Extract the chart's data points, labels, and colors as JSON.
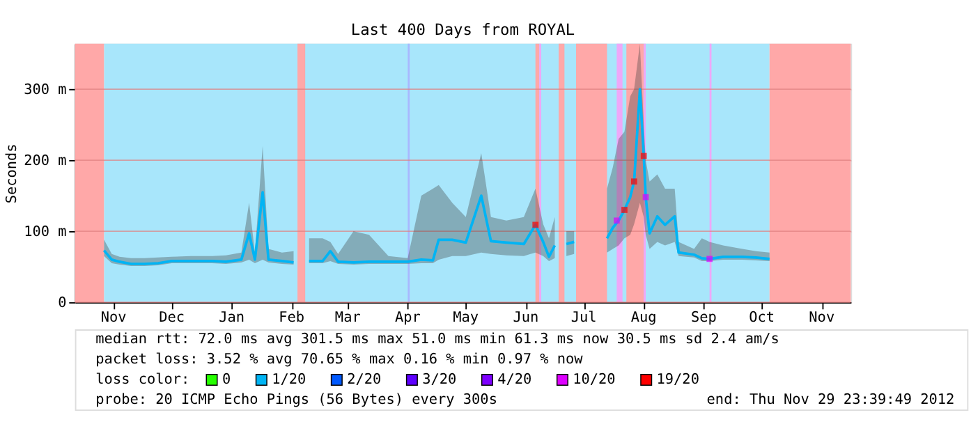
{
  "chart_data": {
    "type": "line",
    "title": "Last 400 Days from ROYAL",
    "ylabel": "Seconds",
    "xlim": [
      "2011-10-26T00:00",
      "2012-11-29T23:39"
    ],
    "xticks": [
      {
        "value": "2011-11-15",
        "label": "Nov"
      },
      {
        "value": "2011-12-15",
        "label": "Dec"
      },
      {
        "value": "2012-01-15",
        "label": "Jan"
      },
      {
        "value": "2012-02-15",
        "label": "Feb"
      },
      {
        "value": "2012-03-15",
        "label": "Mar"
      },
      {
        "value": "2012-04-15",
        "label": "Apr"
      },
      {
        "value": "2012-05-15",
        "label": "May"
      },
      {
        "value": "2012-06-15",
        "label": "Jun"
      },
      {
        "value": "2012-07-15",
        "label": "Jul"
      },
      {
        "value": "2012-08-15",
        "label": "Aug"
      },
      {
        "value": "2012-09-15",
        "label": "Sep"
      },
      {
        "value": "2012-10-15",
        "label": "Oct"
      },
      {
        "value": "2012-11-15",
        "label": "Nov"
      }
    ],
    "ylim": [
      0,
      364
    ],
    "yticks": [
      0,
      {
        "value": 100,
        "label": "100 m"
      },
      {
        "value": 200,
        "label": "200 m"
      },
      {
        "value": 300,
        "label": "300 m"
      }
    ],
    "grid": true,
    "legend": "bottom",
    "legend_title": "loss color:",
    "bands": [
      {
        "axis": "x",
        "from": "2011-11-10",
        "to": "2012-10-19",
        "color": "#a8e6fb"
      },
      {
        "axis": "x",
        "from": "2011-10-26T00:00",
        "to": "2011-11-10",
        "color": "#ffa8a8"
      },
      {
        "axis": "x",
        "from": "2012-02-18",
        "to": "2012-02-22",
        "color": "#ffa8a8"
      },
      {
        "axis": "x",
        "from": "2012-04-15",
        "to": "2012-04-16",
        "color": "#a8b8ff"
      },
      {
        "axis": "x",
        "from": "2012-06-20",
        "to": "2012-06-22",
        "color": "#ffa8a8"
      },
      {
        "axis": "x",
        "from": "2012-06-22",
        "to": "2012-06-23",
        "color": "#eea8f8"
      },
      {
        "axis": "x",
        "from": "2012-07-02",
        "to": "2012-07-05",
        "color": "#ffa8a8"
      },
      {
        "axis": "x",
        "from": "2012-07-11",
        "to": "2012-07-27",
        "color": "#ffa8a8"
      },
      {
        "axis": "x",
        "from": "2012-08-01",
        "to": "2012-08-04",
        "color": "#eea8f8"
      },
      {
        "axis": "x",
        "from": "2012-08-06",
        "to": "2012-08-15",
        "color": "#ffa8a8"
      },
      {
        "axis": "x",
        "from": "2012-08-15",
        "to": "2012-08-16",
        "color": "#eea8f8"
      },
      {
        "axis": "x",
        "from": "2012-09-18",
        "to": "2012-09-19",
        "color": "#eea8f8"
      },
      {
        "axis": "x",
        "from": "2012-10-19",
        "to": "2012-11-29T23:39",
        "color": "#ffa8a8"
      }
    ],
    "series": [
      {
        "name": "0",
        "color": "#26ff00"
      },
      {
        "name": "1/20",
        "color": "#00b4f4",
        "line_style": "solid",
        "x": [
          "2011-11-10",
          "2011-11-14",
          "2011-11-18",
          "2011-11-24",
          "2011-12-01",
          "2011-12-08",
          "2011-12-15",
          "2011-12-25",
          "2012-01-05",
          "2012-01-12",
          "2012-01-20",
          "2012-01-24",
          "2012-01-27",
          "2012-01-31",
          "2012-02-03",
          "2012-02-10",
          "2012-02-16",
          "2012-02-20",
          "2012-02-24",
          "2012-03-02",
          "2012-03-06",
          "2012-03-10",
          "2012-03-18",
          "2012-03-26",
          "2012-04-05",
          "2012-04-15",
          "2012-04-22",
          "2012-04-28",
          "2012-05-01",
          "2012-05-08",
          "2012-05-15",
          "2012-05-23",
          "2012-05-28",
          "2012-06-05",
          "2012-06-14",
          "2012-06-20",
          "2012-06-24",
          "2012-06-27",
          "2012-06-30",
          "2012-07-03",
          "2012-07-06",
          "2012-07-10",
          "2012-07-18",
          "2012-07-27",
          "2012-07-30",
          "2012-08-02",
          "2012-08-05",
          "2012-08-08",
          "2012-08-10",
          "2012-08-13",
          "2012-08-15",
          "2012-08-16",
          "2012-08-18",
          "2012-08-22",
          "2012-08-26",
          "2012-08-31",
          "2012-09-02",
          "2012-09-10",
          "2012-09-14",
          "2012-09-18",
          "2012-09-25",
          "2012-10-05",
          "2012-10-12",
          "2012-10-19"
        ],
        "values": [
          73,
          60,
          57,
          54,
          54,
          55,
          58,
          58,
          58,
          57,
          60,
          97,
          60,
          155,
          60,
          58,
          56,
          null,
          58,
          58,
          72,
          57,
          56,
          57,
          57,
          57,
          60,
          59,
          88,
          88,
          84,
          150,
          86,
          84,
          82,
          109,
          85,
          64,
          80,
          null,
          82,
          85,
          null,
          90,
          105,
          115,
          130,
          148,
          170,
          300,
          206,
          148,
          97,
          121,
          109,
          121,
          70,
          67,
          62,
          61,
          64,
          64,
          63,
          61
        ],
        "lower": [
          65,
          55,
          53,
          51,
          51,
          52,
          55,
          55,
          55,
          54,
          56,
          60,
          55,
          60,
          56,
          54,
          53,
          null,
          55,
          55,
          58,
          54,
          53,
          54,
          54,
          54,
          55,
          55,
          60,
          65,
          65,
          70,
          68,
          66,
          65,
          70,
          65,
          58,
          62,
          null,
          65,
          68,
          null,
          70,
          75,
          80,
          90,
          95,
          110,
          140,
          120,
          95,
          75,
          85,
          80,
          85,
          65,
          63,
          58,
          58,
          60,
          60,
          59,
          58
        ],
        "upper": [
          88,
          68,
          64,
          62,
          62,
          63,
          64,
          65,
          65,
          66,
          70,
          140,
          70,
          220,
          75,
          70,
          72,
          null,
          90,
          90,
          85,
          68,
          100,
          95,
          65,
          62,
          150,
          160,
          165,
          140,
          120,
          210,
          120,
          115,
          120,
          160,
          110,
          90,
          120,
          null,
          100,
          100,
          null,
          160,
          190,
          230,
          240,
          290,
          300,
          364,
          250,
          200,
          170,
          180,
          160,
          160,
          85,
          75,
          90,
          85,
          80,
          75,
          72,
          70
        ]
      },
      {
        "name": "2/20",
        "color": "#0059ff"
      },
      {
        "name": "3/20",
        "color": "#5e00ff"
      },
      {
        "name": "4/20",
        "color": "#7e00ff"
      },
      {
        "name": "10/20",
        "type": "scatter",
        "marker": "square",
        "color": "#dd00ff",
        "x": [
          "2012-08-01",
          "2012-08-16",
          "2012-09-18"
        ],
        "values": [
          115,
          148,
          61
        ]
      },
      {
        "name": "19/20",
        "type": "scatter",
        "marker": "square",
        "color": "#ff0000",
        "x": [
          "2012-06-20",
          "2012-08-05",
          "2012-08-10",
          "2012-08-15"
        ],
        "values": [
          109,
          130,
          170,
          206
        ]
      }
    ],
    "annotations": [
      "median rtt:  72.0 ms avg  301.5 ms max  51.0 ms min  61.3 ms now  30.5 ms sd  2.4   am/s",
      "packet loss: 3.52 % avg  70.65 % max  0.16 % min  0.97 % now",
      "probe:        20 ICMP Echo Pings (56 Bytes) every 300s",
      "end: Thu Nov 29 23:39:49 2012"
    ]
  }
}
